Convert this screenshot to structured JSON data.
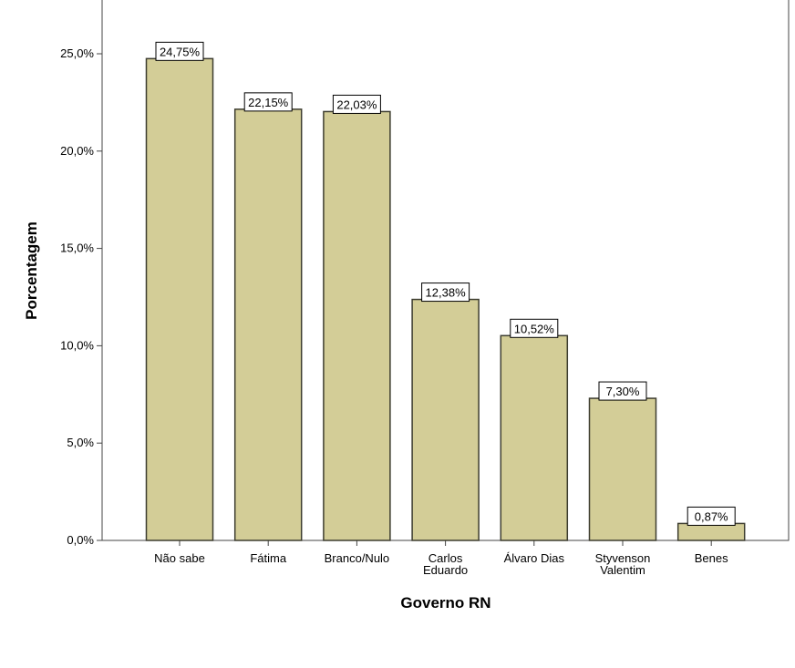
{
  "chart_data": {
    "type": "bar",
    "categories": [
      [
        "Não sabe"
      ],
      [
        "Fátima"
      ],
      [
        "Branco/Nulo"
      ],
      [
        "Carlos",
        "Eduardo"
      ],
      [
        "Álvaro Dias"
      ],
      [
        "Styvenson",
        "Valentim"
      ],
      [
        "Benes"
      ]
    ],
    "values": [
      24.75,
      22.15,
      22.03,
      12.38,
      10.52,
      7.3,
      0.87
    ],
    "data_labels": [
      "24,75%",
      "22,15%",
      "22,03%",
      "12,38%",
      "10,52%",
      "7,30%",
      "0,87%"
    ],
    "xlabel": "Governo RN",
    "ylabel": "Porcentagem",
    "ylim": [
      0,
      27.9
    ],
    "yticks": [
      0,
      5,
      10,
      15,
      20,
      25
    ],
    "ytick_labels": [
      "0,0%",
      "5,0%",
      "10,0%",
      "15,0%",
      "20,0%",
      "25,0%"
    ],
    "grid": false,
    "colors": {
      "bar_fill": "#d3cd97",
      "bar_stroke": "#3d3d30",
      "axis": "#444444"
    }
  }
}
